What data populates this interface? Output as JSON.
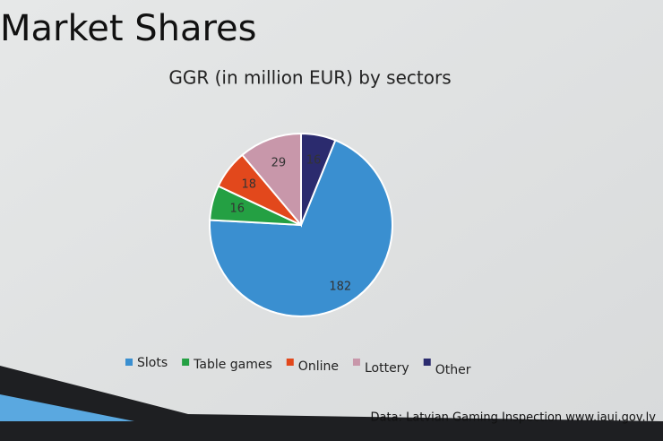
{
  "slide": {
    "title": "Market Shares",
    "source": "Data: Latvian Gaming Inspection www.iaui.gov.lv"
  },
  "chart_data": {
    "type": "pie",
    "title": "GGR (in million EUR) by sectors",
    "categories": [
      "Slots",
      "Table games",
      "Online",
      "Lottery",
      "Other"
    ],
    "values": [
      182,
      16,
      18,
      29,
      16
    ],
    "colors": [
      "#3a8fd0",
      "#24a043",
      "#e2481c",
      "#c897aa",
      "#2b2b6e"
    ],
    "legend": "bottom"
  }
}
